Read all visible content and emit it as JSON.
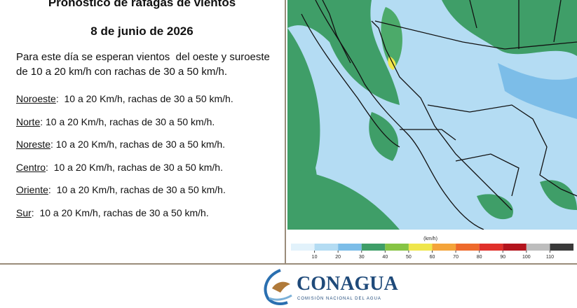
{
  "header": {
    "title": "Pronóstico de ráfagas de vientos",
    "date": "8 de junio de 2026"
  },
  "summary": [
    "Para este día se esperan vientos  del oeste y suroeste",
    "de 10 a 20 km/h con rachas de 30 a 50 km/h."
  ],
  "regions": [
    {
      "name": "Noroeste",
      "text": ":  10 a 20 Km/h, rachas de 30 a 50 km/h."
    },
    {
      "name": "Norte",
      "text": ": 10 a 20 Km/h, rachas de 30 a 50 km/h."
    },
    {
      "name": "Noreste",
      "text": ": 10 a 20 Km/h, rachas de 30 a 50 km/h."
    },
    {
      "name": "Centro",
      "text": ":  10 a 20 Km/h, rachas de 30 a 50 km/h."
    },
    {
      "name": "Oriente",
      "text": ":  10 a 20 Km/h, rachas de 30 a 50 km/h."
    },
    {
      "name": "Sur",
      "text": ":  10 a 20 Km/h, rachas de 30 a 50 km/h."
    }
  ],
  "legend": {
    "unit": "(km/h)",
    "ticks": [
      10,
      20,
      30,
      40,
      50,
      60,
      70,
      80,
      90,
      100,
      110
    ],
    "colors": [
      "#e2f2fb",
      "#b4dcf3",
      "#7cbde8",
      "#3f9e68",
      "#86c444",
      "#efe64c",
      "#f4a43a",
      "#ee6a2c",
      "#e0302a",
      "#b3141d",
      "#bdbdbd",
      "#3a3a3a"
    ]
  },
  "logo": {
    "name": "CONAGUA",
    "subtitle": "COMISIÓN NACIONAL DEL AGUA"
  }
}
